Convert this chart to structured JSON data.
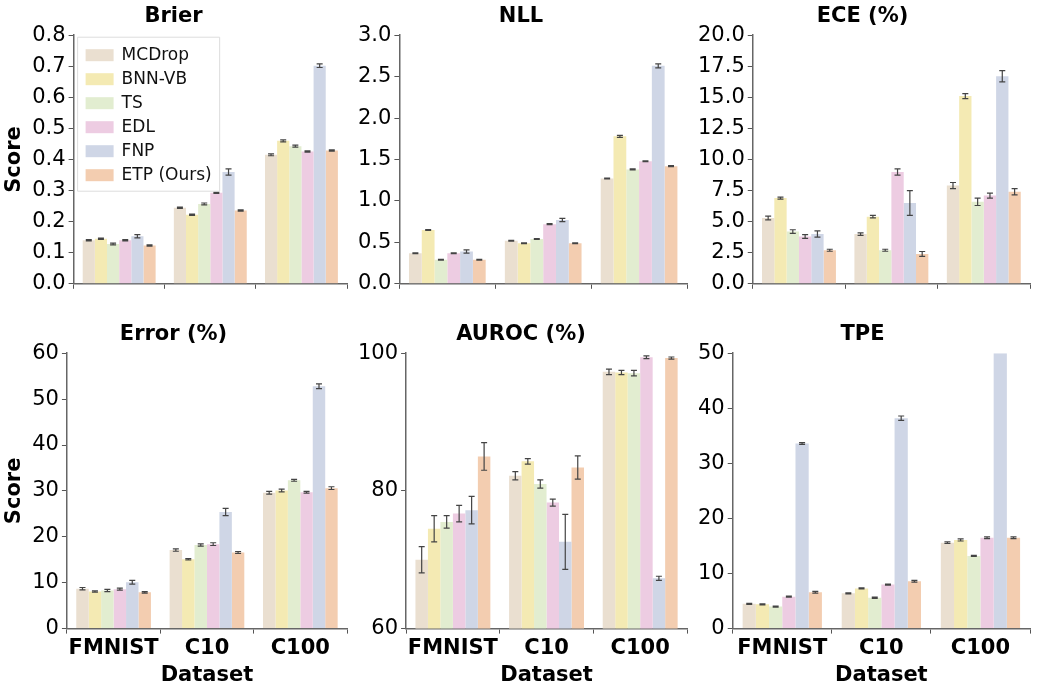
{
  "chart_data": [
    {
      "type": "bar",
      "title": "Brier",
      "ylabel": "Score",
      "categories": [
        null,
        null,
        null
      ],
      "legend": "top left",
      "ylim": [
        0,
        0.8
      ],
      "yticks": [
        {
          "value": 0,
          "label": "0.0"
        },
        0.1,
        0.2,
        0.3,
        0.4,
        0.5,
        0.6,
        0.7,
        0.8
      ],
      "series": [
        {
          "name": "MCDrop",
          "color": "#eadfd0",
          "values": [
            0.14,
            0.245,
            0.415
          ],
          "errors": [
            0.002,
            0.002,
            0.003
          ]
        },
        {
          "name": "BNN-VB",
          "color": "#f4eab3",
          "values": [
            0.145,
            0.222,
            0.46
          ],
          "errors": [
            0.002,
            0.002,
            0.003
          ]
        },
        {
          "name": "TS",
          "color": "#e2edd0",
          "values": [
            0.128,
            0.257,
            0.443
          ],
          "errors": [
            0.003,
            0.003,
            0.003
          ]
        },
        {
          "name": "EDL",
          "color": "#edcce2",
          "values": [
            0.14,
            0.293,
            0.426
          ],
          "errors": [
            0.002,
            0.002,
            0.002
          ]
        },
        {
          "name": "FNP",
          "color": "#cfd6e6",
          "values": [
            0.153,
            0.36,
            0.702
          ],
          "errors": [
            0.005,
            0.01,
            0.006
          ]
        },
        {
          "name": "ETP (Ours)",
          "color": "#f3cdb0",
          "values": [
            0.123,
            0.236,
            0.429
          ],
          "errors": [
            0.002,
            0.002,
            0.002
          ]
        }
      ]
    },
    {
      "type": "bar",
      "title": "NLL",
      "categories": [
        null,
        null,
        null
      ],
      "ylim": [
        0,
        3
      ],
      "yticks": [
        {
          "value": 0,
          "label": "0.0"
        },
        0.5,
        {
          "value": 1,
          "label": "1.0"
        },
        1.5,
        {
          "value": 2,
          "label": "2.0"
        },
        2.5,
        {
          "value": 3,
          "label": "3.0"
        }
      ],
      "series": [
        {
          "color": "#eadfd0",
          "values": [
            0.37,
            0.52,
            1.27
          ],
          "errors": [
            0.005,
            0.005,
            0.005
          ]
        },
        {
          "color": "#f4eab3",
          "values": [
            0.65,
            0.49,
            1.78
          ],
          "errors": [
            0.005,
            0.005,
            0.012
          ]
        },
        {
          "color": "#e2edd0",
          "values": [
            0.29,
            0.54,
            1.38
          ],
          "errors": [
            0.005,
            0.005,
            0.006
          ]
        },
        {
          "color": "#edcce2",
          "values": [
            0.37,
            0.72,
            1.48
          ],
          "errors": [
            0.005,
            0.005,
            0.005
          ]
        },
        {
          "color": "#cfd6e6",
          "values": [
            0.39,
            0.77,
            2.63
          ],
          "errors": [
            0.02,
            0.02,
            0.025
          ]
        },
        {
          "color": "#f3cdb0",
          "values": [
            0.29,
            0.49,
            1.42
          ],
          "errors": [
            0.005,
            0.005,
            0.005
          ]
        }
      ]
    },
    {
      "type": "bar",
      "title": "ECE (%)",
      "categories": [
        null,
        null,
        null
      ],
      "ylim": [
        0,
        20
      ],
      "yticks": [
        {
          "value": 0,
          "label": "0.0"
        },
        2.5,
        {
          "value": 5,
          "label": "5.0"
        },
        7.5,
        {
          "value": 10,
          "label": "10.0"
        },
        12.5,
        {
          "value": 15,
          "label": "15.0"
        },
        17.5,
        {
          "value": 20,
          "label": "20.0"
        }
      ],
      "series": [
        {
          "color": "#eadfd0",
          "values": [
            5.3,
            4.0,
            7.9
          ],
          "errors": [
            0.15,
            0.1,
            0.25
          ]
        },
        {
          "color": "#f4eab3",
          "values": [
            6.9,
            5.4,
            15.1
          ],
          "errors": [
            0.08,
            0.1,
            0.2
          ]
        },
        {
          "color": "#e2edd0",
          "values": [
            4.2,
            2.7,
            6.6
          ],
          "errors": [
            0.15,
            0.08,
            0.3
          ]
        },
        {
          "color": "#edcce2",
          "values": [
            3.8,
            9.0,
            7.1
          ],
          "errors": [
            0.15,
            0.25,
            0.2
          ]
        },
        {
          "color": "#cfd6e6",
          "values": [
            4.0,
            6.5,
            16.7
          ],
          "errors": [
            0.25,
            1.0,
            0.45
          ]
        },
        {
          "color": "#f3cdb0",
          "values": [
            2.7,
            2.4,
            7.4
          ],
          "errors": [
            0.08,
            0.2,
            0.25
          ]
        }
      ]
    },
    {
      "type": "bar",
      "title": "Error (%)",
      "ylabel": "Score",
      "xlabel": "Dataset",
      "categories": [
        "FMNIST",
        "C10",
        "C100"
      ],
      "ylim": [
        0,
        60
      ],
      "yticks": [
        0,
        10,
        20,
        30,
        40,
        50,
        60
      ],
      "series": [
        {
          "color": "#eadfd0",
          "values": [
            8.7,
            17.1,
            29.6
          ],
          "errors": [
            0.25,
            0.25,
            0.3
          ]
        },
        {
          "color": "#f4eab3",
          "values": [
            8.1,
            15.1,
            30.1
          ],
          "errors": [
            0.15,
            0.15,
            0.3
          ]
        },
        {
          "color": "#e2edd0",
          "values": [
            8.3,
            18.2,
            32.3
          ],
          "errors": [
            0.25,
            0.25,
            0.2
          ]
        },
        {
          "color": "#edcce2",
          "values": [
            8.6,
            18.4,
            29.7
          ],
          "errors": [
            0.2,
            0.3,
            0.2
          ]
        },
        {
          "color": "#cfd6e6",
          "values": [
            10.1,
            25.4,
            52.8
          ],
          "errors": [
            0.4,
            0.8,
            0.5
          ]
        },
        {
          "color": "#f3cdb0",
          "values": [
            7.9,
            16.6,
            30.6
          ],
          "errors": [
            0.15,
            0.2,
            0.3
          ]
        }
      ]
    },
    {
      "type": "bar",
      "title": "AUROC (%)",
      "xlabel": "Dataset",
      "categories": [
        "FMNIST",
        "C10",
        "C100"
      ],
      "ylim": [
        60,
        100
      ],
      "yticks": [
        60,
        80,
        100
      ],
      "series": [
        {
          "color": "#eadfd0",
          "values": [
            70.0,
            82.2,
            97.3
          ],
          "errors": [
            1.9,
            0.6,
            0.4
          ]
        },
        {
          "color": "#f4eab3",
          "values": [
            74.5,
            84.3,
            97.2
          ],
          "errors": [
            1.9,
            0.4,
            0.3
          ]
        },
        {
          "color": "#e2edd0",
          "values": [
            75.5,
            81.0,
            97.1
          ],
          "errors": [
            0.9,
            0.6,
            0.4
          ]
        },
        {
          "color": "#edcce2",
          "values": [
            76.7,
            78.3,
            99.4
          ],
          "errors": [
            1.2,
            0.5,
            0.2
          ]
        },
        {
          "color": "#cfd6e6",
          "values": [
            77.2,
            72.6,
            67.3
          ],
          "errors": [
            2.0,
            4.0,
            0.3
          ]
        },
        {
          "color": "#f3cdb0",
          "values": [
            85.0,
            83.4,
            99.3
          ],
          "errors": [
            2.0,
            1.7,
            0.15
          ]
        }
      ]
    },
    {
      "type": "bar",
      "title": "TPE",
      "xlabel": "Dataset",
      "categories": [
        "FMNIST",
        "C10",
        "C100"
      ],
      "ylim": [
        0,
        50
      ],
      "yticks": [
        0,
        10,
        20,
        30,
        40,
        50
      ],
      "series": [
        {
          "color": "#eadfd0",
          "values": [
            4.5,
            6.4,
            15.6
          ],
          "errors": [
            0.1,
            0.1,
            0.15
          ]
        },
        {
          "color": "#f4eab3",
          "values": [
            4.4,
            7.3,
            16.1
          ],
          "errors": [
            0.1,
            0.1,
            0.2
          ]
        },
        {
          "color": "#e2edd0",
          "values": [
            4.0,
            5.6,
            13.2
          ],
          "errors": [
            0.1,
            0.1,
            0.1
          ]
        },
        {
          "color": "#edcce2",
          "values": [
            5.8,
            8.0,
            16.5
          ],
          "errors": [
            0.1,
            0.1,
            0.15
          ]
        },
        {
          "color": "#cfd6e6",
          "values": [
            33.6,
            38.2,
            50
          ],
          "errors": [
            0.15,
            0.4,
            null
          ]
        },
        {
          "color": "#f3cdb0",
          "values": [
            6.6,
            8.6,
            16.5
          ],
          "errors": [
            0.15,
            0.15,
            0.15
          ]
        }
      ]
    }
  ]
}
